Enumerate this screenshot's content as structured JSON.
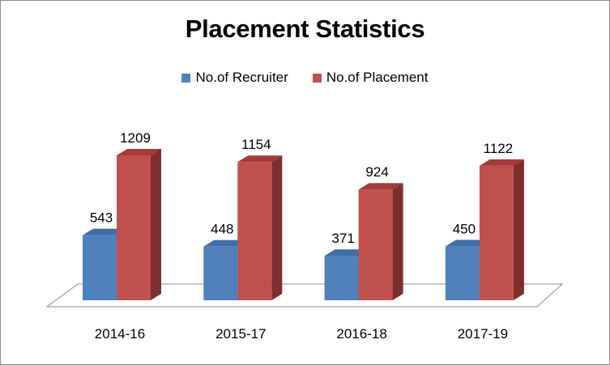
{
  "chart_data": {
    "type": "bar",
    "title": "Placement Statistics",
    "categories": [
      "2014-16",
      "2015-17",
      "2016-18",
      "2017-19"
    ],
    "series": [
      {
        "name": "No.of Recruiter",
        "values": [
          543,
          448,
          371,
          450
        ],
        "color": "#4f81bd",
        "side_color": "#3a6391",
        "top_color": "#416ea4"
      },
      {
        "name": "No.of Placement",
        "values": [
          1209,
          1154,
          924,
          1122
        ],
        "color": "#c0504d",
        "side_color": "#7c2f2d",
        "top_color": "#a23c39"
      }
    ],
    "xlabel": "",
    "ylabel": "",
    "legend_position": "top",
    "grid": false,
    "style": "3d-column"
  }
}
